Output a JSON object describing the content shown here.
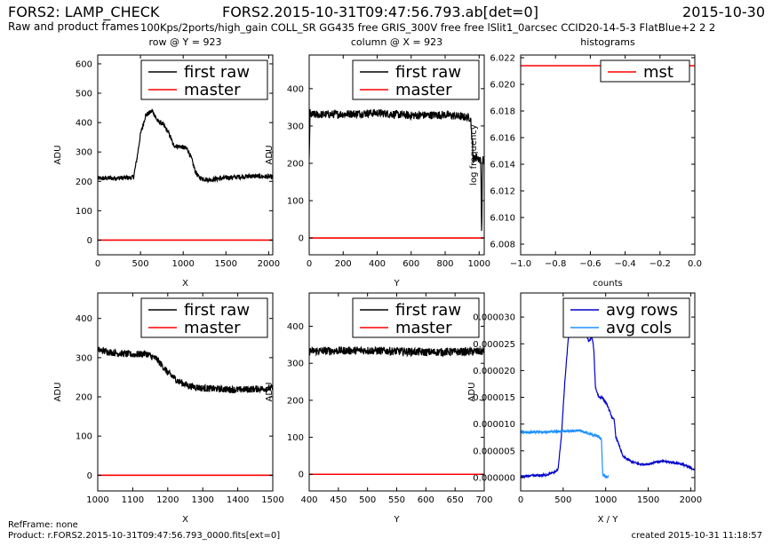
{
  "header": {
    "left": "FORS2: LAMP_CHECK",
    "center": "FORS2.2015-10-31T09:47:56.793.ab[det=0]",
    "right": "2015-10-30",
    "subtitle": "Raw and product frames",
    "setup": "100Kps/2ports/high_gain COLL_SR GG435 free GRIS_300V free free lSlit1_0arcsec CCID20-14-5-3 FlatBlue+2 2 2"
  },
  "footer": {
    "refframe": "RefFrame: none",
    "product": "Product: r.FORS2.2015-10-31T09:47:56.793_0000.fits[ext=0]",
    "created": "created 2015-10-31 11:18:57"
  },
  "colors": {
    "first_raw": "#000000",
    "master": "#ff0000",
    "mst": "#ff0000",
    "avg_rows": "#0000cc",
    "avg_cols": "#1e90ff"
  },
  "chart_data": [
    {
      "type": "line",
      "title": "row @ Y = 923",
      "xlabel": "X",
      "ylabel": "ADU",
      "xlim": [
        0,
        2048
      ],
      "ylim": [
        -50,
        630
      ],
      "xticks": [
        "0",
        "500",
        "1000",
        "1500",
        "2000"
      ],
      "xtick_values": [
        0,
        500,
        1000,
        1500,
        2000
      ],
      "yticks": [
        "0",
        "100",
        "200",
        "300",
        "400",
        "500",
        "600"
      ],
      "ytick_values": [
        0,
        100,
        200,
        300,
        400,
        500,
        600
      ],
      "legend": [
        "first raw",
        "master"
      ],
      "legend_position": "top-right",
      "series": [
        {
          "name": "first raw",
          "color": "#000000",
          "noise": 8,
          "x": [
            0,
            380,
            420,
            460,
            500,
            560,
            640,
            700,
            760,
            820,
            860,
            880,
            920,
            980,
            1050,
            1100,
            1140,
            1180,
            1220,
            1300,
            1500,
            1800,
            2048
          ],
          "y": [
            210,
            212,
            215,
            280,
            360,
            425,
            440,
            405,
            395,
            370,
            345,
            325,
            320,
            318,
            310,
            275,
            235,
            215,
            210,
            205,
            212,
            218,
            215
          ]
        },
        {
          "name": "master",
          "color": "#ff0000",
          "x": [
            0,
            2048
          ],
          "y": [
            0,
            0
          ]
        }
      ]
    },
    {
      "type": "line",
      "title": "column @ X = 923",
      "xlabel": "Y",
      "ylabel": "ADU",
      "xlim": [
        0,
        1030
      ],
      "ylim": [
        -45,
        490
      ],
      "xticks": [
        "0",
        "200",
        "400",
        "600",
        "800",
        "1000"
      ],
      "xtick_values": [
        0,
        200,
        400,
        600,
        800,
        1000
      ],
      "yticks": [
        "0",
        "100",
        "200",
        "300",
        "400"
      ],
      "ytick_values": [
        0,
        100,
        200,
        300,
        400
      ],
      "legend": [
        "first raw",
        "master"
      ],
      "legend_position": "top-right",
      "series": [
        {
          "name": "first raw",
          "color": "#000000",
          "noise": 11,
          "x": [
            0,
            5,
            10,
            200,
            400,
            600,
            800,
            950,
            965,
            980,
            1000,
            1010,
            1015,
            1020,
            1030
          ],
          "y": [
            210,
            335,
            330,
            332,
            335,
            328,
            330,
            322,
            210,
            218,
            212,
            205,
            0,
            210,
            205
          ]
        },
        {
          "name": "master",
          "color": "#ff0000",
          "x": [
            0,
            1030
          ],
          "y": [
            0,
            0
          ]
        }
      ]
    },
    {
      "type": "line",
      "title": "histograms",
      "xlabel": "counts",
      "ylabel": "log frequency",
      "xlim": [
        -1.0,
        0.0
      ],
      "ylim": [
        6.0072,
        6.0222
      ],
      "xticks": [
        "−1.0",
        "−0.8",
        "−0.6",
        "−0.4",
        "−0.2",
        "0.0"
      ],
      "xtick_values": [
        -1.0,
        -0.8,
        -0.6,
        -0.4,
        -0.2,
        0.0
      ],
      "yticks": [
        "6.008",
        "6.010",
        "6.012",
        "6.014",
        "6.016",
        "6.018",
        "6.020",
        "6.022"
      ],
      "ytick_values": [
        6.008,
        6.01,
        6.012,
        6.014,
        6.016,
        6.018,
        6.02,
        6.022
      ],
      "legend": [
        "mst"
      ],
      "legend_position": "top-right",
      "series": [
        {
          "name": "mst",
          "color": "#ff0000",
          "x": [
            -1.0,
            0.0
          ],
          "y": [
            6.0214,
            6.0214
          ]
        }
      ]
    },
    {
      "type": "line",
      "title": "",
      "xlabel": "X",
      "ylabel": "ADU",
      "xlim": [
        1000,
        1500
      ],
      "ylim": [
        -40,
        465
      ],
      "xticks": [
        "1000",
        "1100",
        "1200",
        "1300",
        "1400",
        "1500"
      ],
      "xtick_values": [
        1000,
        1100,
        1200,
        1300,
        1400,
        1500
      ],
      "yticks": [
        "0",
        "100",
        "200",
        "300",
        "400"
      ],
      "ytick_values": [
        0,
        100,
        200,
        300,
        400
      ],
      "legend": [
        "first raw",
        "master"
      ],
      "legend_position": "top-right",
      "series": [
        {
          "name": "first raw",
          "color": "#000000",
          "noise": 9,
          "x": [
            1000,
            1050,
            1100,
            1140,
            1170,
            1200,
            1230,
            1260,
            1300,
            1400,
            1500
          ],
          "y": [
            320,
            312,
            308,
            310,
            295,
            262,
            240,
            228,
            222,
            218,
            222
          ]
        },
        {
          "name": "master",
          "color": "#ff0000",
          "x": [
            1000,
            1500
          ],
          "y": [
            0,
            0
          ]
        }
      ]
    },
    {
      "type": "line",
      "title": "",
      "xlabel": "Y",
      "ylabel": "ADU",
      "xlim": [
        400,
        700
      ],
      "ylim": [
        -45,
        490
      ],
      "xticks": [
        "400",
        "450",
        "500",
        "550",
        "600",
        "650",
        "700"
      ],
      "xtick_values": [
        400,
        450,
        500,
        550,
        600,
        650,
        700
      ],
      "yticks": [
        "0",
        "100",
        "200",
        "300",
        "400"
      ],
      "ytick_values": [
        0,
        100,
        200,
        300,
        400
      ],
      "legend": [
        "first raw",
        "master"
      ],
      "legend_position": "top-right",
      "series": [
        {
          "name": "first raw",
          "color": "#000000",
          "noise": 11,
          "x": [
            400,
            500,
            600,
            700
          ],
          "y": [
            333,
            335,
            330,
            332
          ]
        },
        {
          "name": "master",
          "color": "#ff0000",
          "x": [
            400,
            700
          ],
          "y": [
            0,
            0
          ]
        }
      ]
    },
    {
      "type": "line",
      "title": "",
      "xlabel": "X / Y",
      "ylabel": "ADU",
      "xlim": [
        0,
        2048
      ],
      "ylim": [
        -2.5e-06,
        3.45e-05
      ],
      "xticks": [
        "0",
        "500",
        "1000",
        "1500",
        "2000"
      ],
      "xtick_values": [
        0,
        500,
        1000,
        1500,
        2000
      ],
      "yticks": [
        "0.000000",
        "0.000005",
        "0.000010",
        "0.000015",
        "0.000020",
        "0.000025",
        "0.000030"
      ],
      "ytick_values": [
        0,
        5e-06,
        1e-05,
        1.5e-05,
        2e-05,
        2.5e-05,
        3e-05
      ],
      "legend": [
        "avg rows",
        "avg cols"
      ],
      "legend_position": "top-right",
      "series": [
        {
          "name": "avg rows",
          "color": "#0000cc",
          "noise": 2e-07,
          "x": [
            0,
            300,
            400,
            440,
            480,
            520,
            560,
            600,
            640,
            680,
            720,
            760,
            800,
            840,
            860,
            880,
            920,
            960,
            980,
            1020,
            1080,
            1100,
            1120,
            1160,
            1200,
            1300,
            1400,
            1500,
            1600,
            1700,
            1800,
            1900,
            2048
          ],
          "y": [
            2e-07,
            5e-07,
            1e-06,
            1.5e-06,
            8e-06,
            1.8e-05,
            2.6e-05,
            2.8e-05,
            2.72e-05,
            2.75e-05,
            2.9e-05,
            2.7e-05,
            2.55e-05,
            2.62e-05,
            2.4e-05,
            1.68e-05,
            1.5e-05,
            1.5e-05,
            1.45e-05,
            1.35e-05,
            1.1e-05,
            1.08e-05,
            7.5e-06,
            6e-06,
            4e-06,
            3e-06,
            2.5e-06,
            2.5e-06,
            3e-06,
            3e-06,
            2.8e-06,
            2.5e-06,
            1.5e-06
          ]
        },
        {
          "name": "avg cols",
          "color": "#1e90ff",
          "noise": 2e-07,
          "x": [
            0,
            200,
            400,
            600,
            700,
            800,
            900,
            950,
            965,
            975,
            990,
            1000,
            1010,
            1030
          ],
          "y": [
            8.5e-06,
            8.5e-06,
            8.6e-06,
            8.7e-06,
            8.8e-06,
            8.2e-06,
            7.8e-06,
            7.2e-06,
            5e-07,
            4e-07,
            3e-07,
            1e-07,
            1e-07,
            1e-07
          ]
        }
      ]
    }
  ]
}
